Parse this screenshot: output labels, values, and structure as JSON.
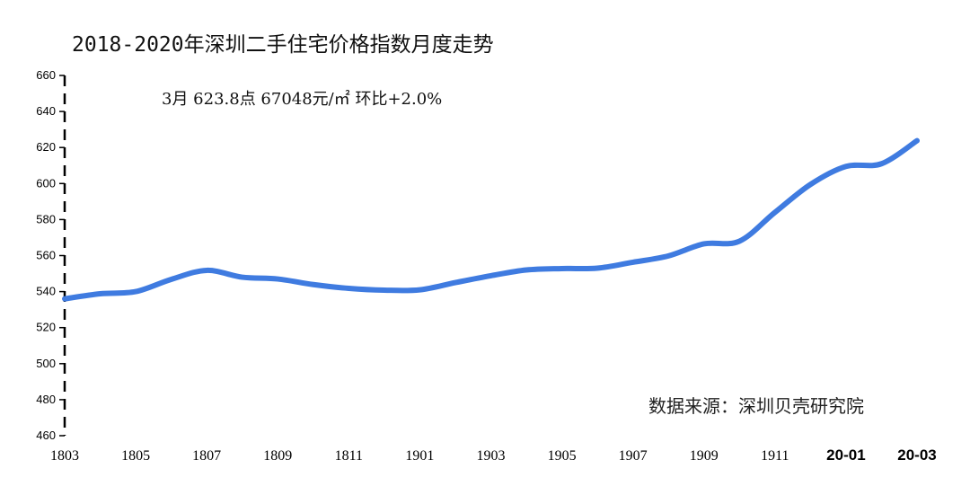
{
  "title": "2018-2020年深圳二手住宅价格指数月度走势",
  "annotation": "3月 623.8点 67048元/㎡ 环比+2.0%",
  "source": "数据来源：深圳贝壳研究院",
  "colors": {
    "line": "#3f7be0",
    "axis": "#000000"
  },
  "chart_data": {
    "type": "line",
    "title": "2018-2020年深圳二手住宅价格指数月度走势",
    "xlabel": "",
    "ylabel": "",
    "ylim": [
      460,
      660
    ],
    "yticks": [
      460,
      480,
      500,
      520,
      540,
      560,
      580,
      600,
      620,
      640,
      660
    ],
    "grid": false,
    "x": [
      "1803",
      "1804",
      "1805",
      "1806",
      "1807",
      "1808",
      "1809",
      "1810",
      "1811",
      "1812",
      "1901",
      "1902",
      "1903",
      "1904",
      "1905",
      "1906",
      "1907",
      "1908",
      "1909",
      "1910",
      "1911",
      "1912",
      "20-01",
      "20-02",
      "20-03"
    ],
    "xtick_labels": [
      {
        "label": "1803",
        "index": 0,
        "bold": false
      },
      {
        "label": "1805",
        "index": 2,
        "bold": false
      },
      {
        "label": "1807",
        "index": 4,
        "bold": false
      },
      {
        "label": "1809",
        "index": 6,
        "bold": false
      },
      {
        "label": "1811",
        "index": 8,
        "bold": false
      },
      {
        "label": "1901",
        "index": 10,
        "bold": false
      },
      {
        "label": "1903",
        "index": 12,
        "bold": false
      },
      {
        "label": "1905",
        "index": 14,
        "bold": false
      },
      {
        "label": "1907",
        "index": 16,
        "bold": false
      },
      {
        "label": "1909",
        "index": 18,
        "bold": false
      },
      {
        "label": "1911",
        "index": 20,
        "bold": false
      },
      {
        "label": "20-01",
        "index": 22,
        "bold": true
      },
      {
        "label": "20-03",
        "index": 24,
        "bold": true
      }
    ],
    "series": [
      {
        "values": [
          536,
          538.8,
          540,
          546.8,
          551.8,
          548,
          547,
          543.9,
          541.8,
          540.8,
          541,
          545,
          548.8,
          552,
          552.8,
          553,
          556.3,
          559.8,
          566.5,
          568,
          584,
          599.5,
          609.5,
          611,
          623.8
        ]
      }
    ]
  }
}
